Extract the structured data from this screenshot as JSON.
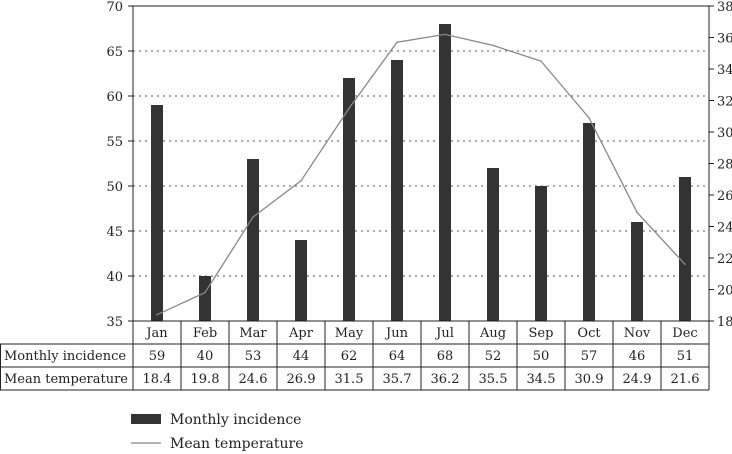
{
  "chart_data": {
    "type": "bar",
    "categories": [
      "Jan",
      "Feb",
      "Mar",
      "Apr",
      "May",
      "Jun",
      "Jul",
      "Aug",
      "Sep",
      "Oct",
      "Nov",
      "Dec"
    ],
    "series": [
      {
        "name": "Monthly incidence",
        "type": "bar",
        "axis": "left",
        "values": [
          59,
          40,
          53,
          44,
          62,
          64,
          68,
          52,
          50,
          57,
          46,
          51
        ],
        "labels": [
          "59",
          "40",
          "53",
          "44",
          "62",
          "64",
          "68",
          "52",
          "50",
          "57",
          "46",
          "51"
        ]
      },
      {
        "name": "Mean temperature",
        "type": "line",
        "axis": "right",
        "values": [
          18.4,
          19.8,
          24.6,
          26.9,
          31.5,
          35.7,
          36.2,
          35.5,
          34.5,
          30.9,
          24.9,
          21.6
        ],
        "labels": [
          "18.4",
          "19.8",
          "24.6",
          "26.9",
          "31.5",
          "35.7",
          "36.2",
          "35.5",
          "34.5",
          "30.9",
          "24.9",
          "21.6"
        ]
      }
    ],
    "title": "",
    "xlabel": "",
    "ylabel": "",
    "ylim": [
      35,
      70
    ],
    "y2lim": [
      18,
      38
    ],
    "yticks": [
      "35",
      "40",
      "45",
      "50",
      "55",
      "60",
      "65",
      "70"
    ],
    "y2ticks": [
      "18",
      "20",
      "22",
      "24",
      "26",
      "28",
      "30",
      "32",
      "34",
      "36",
      "38"
    ],
    "grid": "horizontal dotted",
    "legend": "bottom-center",
    "data_table": true,
    "colors": {
      "bar": "#333333",
      "line": "#888888",
      "grid": "#555555"
    }
  }
}
